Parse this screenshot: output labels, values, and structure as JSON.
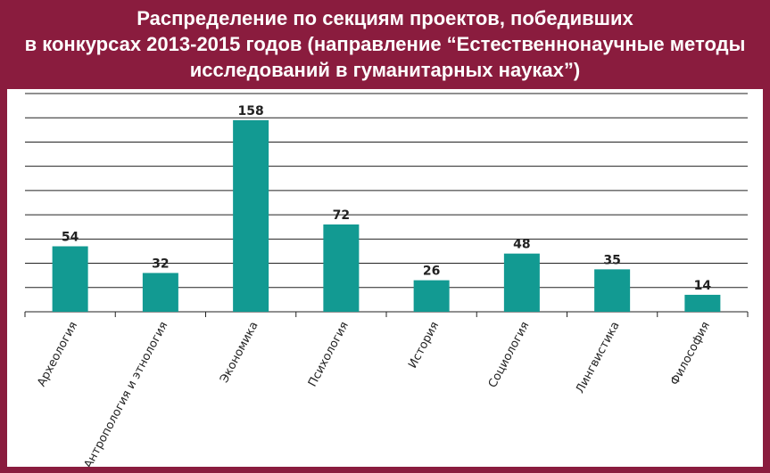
{
  "title_lines": [
    "Распределение по секциям проектов, победивших",
    "в конкурсах 2013-2015 годов (направление “Естественнонаучные методы",
    "исследований в гуманитарных науках”)"
  ],
  "colors": {
    "background": "#8a1c3e",
    "bar": "#129a92",
    "grid": "#222222"
  },
  "chart_data": {
    "type": "bar",
    "title": "Распределение по секциям проектов, победивших в конкурсах 2013-2015 годов (направление “Естественнонаучные методы исследований в гуманитарных науках”)",
    "categories": [
      "Археология",
      "Антропология и этнология",
      "Экономика",
      "Психология",
      "История",
      "Социология",
      "Лингвистика",
      "Философия"
    ],
    "values": [
      54,
      32,
      158,
      72,
      26,
      48,
      35,
      14
    ],
    "ylim": [
      0,
      180
    ],
    "grid": true,
    "data_labels": true
  }
}
